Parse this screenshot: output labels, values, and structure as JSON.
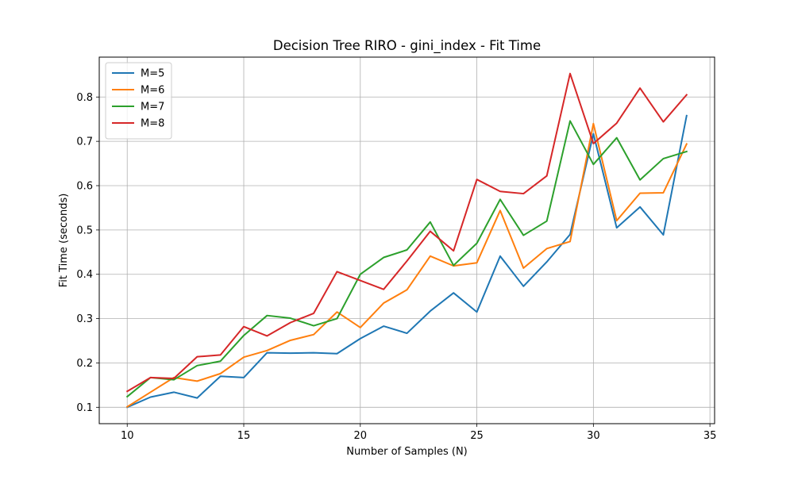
{
  "chart_data": {
    "type": "line",
    "title": "Decision Tree RIRO - gini_index - Fit Time",
    "xlabel": "Number of Samples (N)",
    "ylabel": "Fit Time (seconds)",
    "xlim": [
      8.8,
      35.2
    ],
    "ylim": [
      0.063,
      0.89
    ],
    "x_ticks": [
      10,
      15,
      20,
      25,
      30,
      35
    ],
    "y_ticks": [
      0.1,
      0.2,
      0.3,
      0.4,
      0.5,
      0.6,
      0.7,
      0.8
    ],
    "grid": true,
    "legend_position": "top-left",
    "x": [
      10,
      11,
      12,
      13,
      14,
      15,
      16,
      17,
      18,
      19,
      20,
      21,
      22,
      23,
      24,
      25,
      26,
      27,
      28,
      29,
      30,
      31,
      32,
      33,
      34
    ],
    "series": [
      {
        "name": "M=5",
        "color": "#1f77b4",
        "values": [
          0.1,
          0.123,
          0.134,
          0.121,
          0.17,
          0.167,
          0.223,
          0.222,
          0.223,
          0.221,
          0.255,
          0.283,
          0.267,
          0.317,
          0.358,
          0.315,
          0.441,
          0.373,
          0.428,
          0.49,
          0.717,
          0.505,
          0.552,
          0.489,
          0.758
        ]
      },
      {
        "name": "M=6",
        "color": "#ff7f0e",
        "values": [
          0.101,
          0.134,
          0.167,
          0.159,
          0.176,
          0.213,
          0.228,
          0.251,
          0.264,
          0.315,
          0.28,
          0.335,
          0.365,
          0.441,
          0.419,
          0.426,
          0.544,
          0.414,
          0.458,
          0.474,
          0.74,
          0.521,
          0.583,
          0.584,
          0.694
        ]
      },
      {
        "name": "M=7",
        "color": "#2ca02c",
        "values": [
          0.124,
          0.167,
          0.162,
          0.194,
          0.204,
          0.262,
          0.307,
          0.301,
          0.284,
          0.3,
          0.4,
          0.438,
          0.455,
          0.518,
          0.42,
          0.47,
          0.569,
          0.488,
          0.52,
          0.746,
          0.648,
          0.708,
          0.613,
          0.661,
          0.677
        ]
      },
      {
        "name": "M=8",
        "color": "#d62728",
        "values": [
          0.136,
          0.167,
          0.165,
          0.214,
          0.218,
          0.282,
          0.261,
          0.291,
          0.312,
          0.406,
          0.386,
          0.366,
          0.43,
          0.497,
          0.453,
          0.614,
          0.587,
          0.582,
          0.622,
          0.853,
          0.695,
          0.741,
          0.82,
          0.744,
          0.805
        ]
      }
    ]
  }
}
